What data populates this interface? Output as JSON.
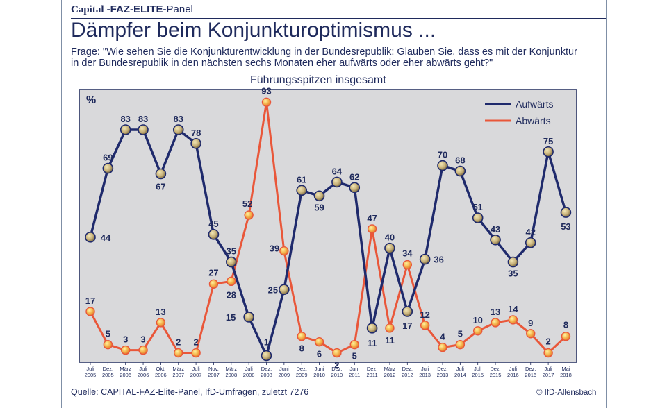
{
  "header": {
    "brand_part1": "Capital",
    "brand_part2": " -FAZ-ELITE-",
    "brand_part3": "Panel",
    "title": "Dämpfer beim Konjunkturoptimismus ...",
    "question": "Frage: \"Wie sehen Sie die Konjunkturentwicklung in der Bundesrepublik: Glauben Sie, dass es mit der Konjunktur in der Bundesrepublik in den nächsten sechs Monaten eher aufwärts oder eher abwärts geht?\"",
    "subtitle": "Führungsspitzen insgesamt"
  },
  "footer": {
    "source": "Quelle: CAPITAL-FAZ-Elite-Panel, IfD-Umfragen, zuletzt 7276",
    "copyright": "© IfD-Allensbach"
  },
  "colors": {
    "panel_bg": "#d9d9db",
    "up": "#1f2a6c",
    "down": "#e9573a",
    "text": "#1f2a5c"
  },
  "chart_data": {
    "type": "line",
    "ylabel": "%",
    "ylim": [
      0,
      100
    ],
    "grid": false,
    "legend": "top-right",
    "categories": [
      [
        "Juli",
        "2005"
      ],
      [
        "Dez.",
        "2005"
      ],
      [
        "März",
        "2006"
      ],
      [
        "Juli",
        "2006"
      ],
      [
        "Okt.",
        "2006"
      ],
      [
        "März",
        "2007"
      ],
      [
        "Juli",
        "2007"
      ],
      [
        "Nov.",
        "2007"
      ],
      [
        "März",
        "2008"
      ],
      [
        "Juli",
        "2008"
      ],
      [
        "Dez.",
        "2008"
      ],
      [
        "Juni",
        "2009"
      ],
      [
        "Dez.",
        "2009"
      ],
      [
        "Juni",
        "2010"
      ],
      [
        "Dez.",
        "2010"
      ],
      [
        "Juni",
        "2011"
      ],
      [
        "Dez.",
        "2011"
      ],
      [
        "März",
        "2012"
      ],
      [
        "Dez.",
        "2012"
      ],
      [
        "Juli",
        "2013"
      ],
      [
        "Dez.",
        "2013"
      ],
      [
        "Juli",
        "2014"
      ],
      [
        "Juli",
        "2015"
      ],
      [
        "Dez.",
        "2015"
      ],
      [
        "Juli",
        "2016"
      ],
      [
        "Dez.",
        "2016"
      ],
      [
        "Juli",
        "2017"
      ],
      [
        "Mai",
        "2018"
      ]
    ],
    "series": [
      {
        "name": "Aufwärts",
        "color": "#1f2a6c",
        "values": [
          44,
          69,
          83,
          83,
          67,
          83,
          78,
          45,
          35,
          15,
          1,
          25,
          61,
          59,
          64,
          62,
          11,
          40,
          17,
          36,
          70,
          68,
          51,
          43,
          35,
          42,
          75,
          53
        ]
      },
      {
        "name": "Abwärts",
        "color": "#e9573a",
        "values": [
          17,
          5,
          3,
          3,
          13,
          2,
          2,
          27,
          28,
          52,
          93,
          39,
          8,
          6,
          2,
          5,
          47,
          11,
          34,
          12,
          4,
          5,
          10,
          13,
          14,
          9,
          2,
          8
        ]
      }
    ]
  }
}
